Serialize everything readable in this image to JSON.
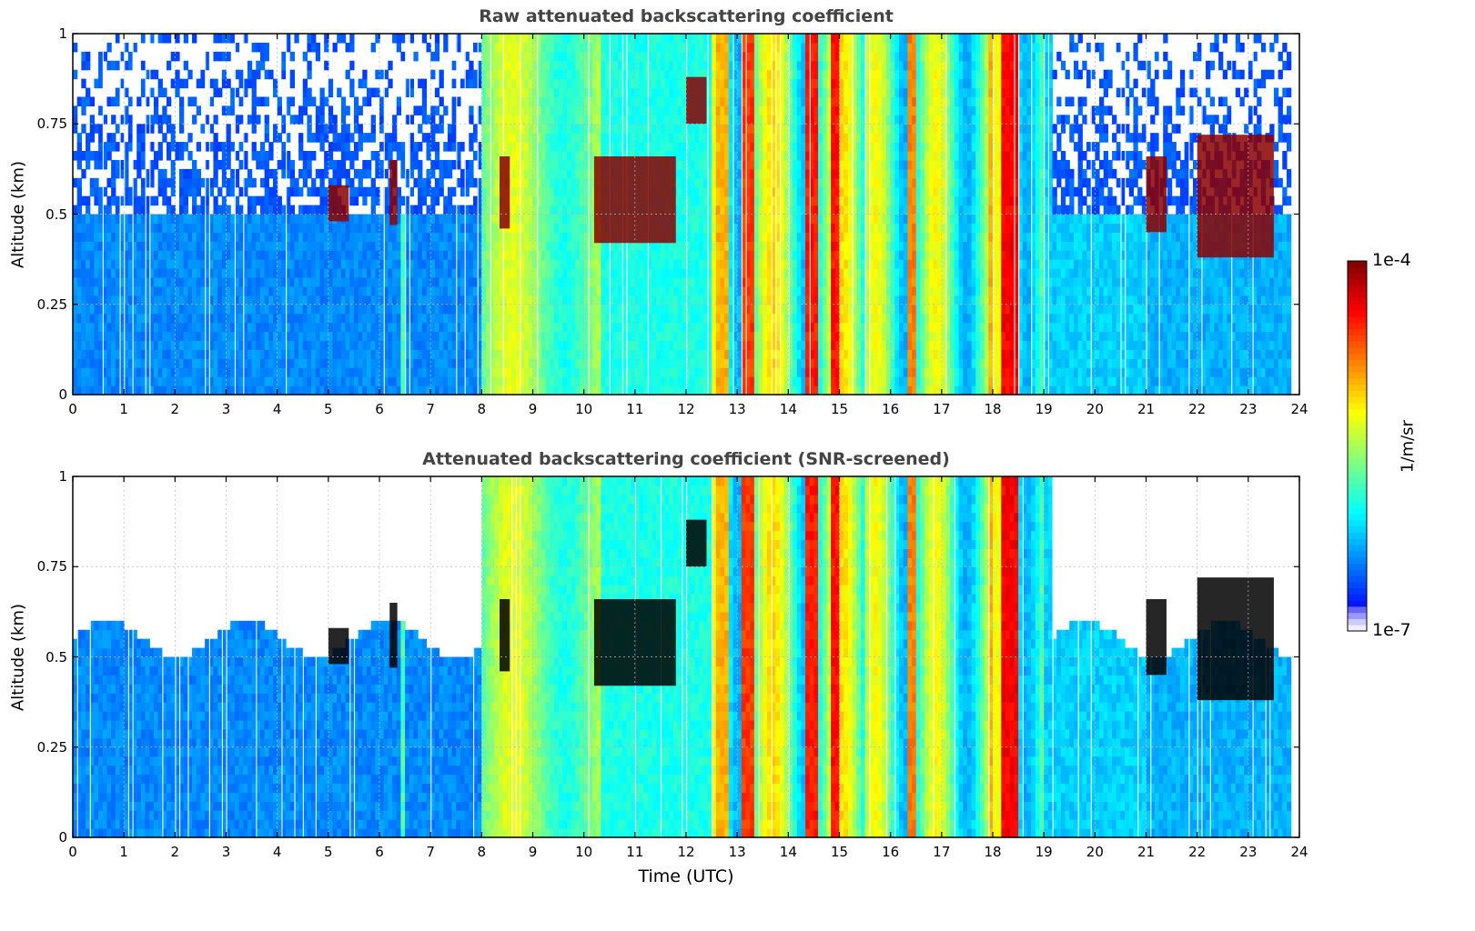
{
  "chart_data": [
    {
      "type": "heatmap",
      "title": "Raw attenuated backscattering coefficient",
      "ylabel": "Altitude (km)",
      "xlabel": "",
      "xlim": [
        0,
        24
      ],
      "ylim": [
        0,
        1
      ],
      "x_ticks": [
        "0",
        "1",
        "2",
        "3",
        "4",
        "5",
        "6",
        "7",
        "8",
        "9",
        "10",
        "11",
        "12",
        "13",
        "14",
        "15",
        "16",
        "17",
        "18",
        "19",
        "20",
        "21",
        "22",
        "23",
        "24"
      ],
      "y_ticks": [
        "0",
        "0.25",
        "0.5",
        "0.75",
        "1"
      ],
      "grid": true,
      "screened": false,
      "cloud_layers": [
        {
          "x": [
            5.0,
            5.4
          ],
          "y": [
            0.48,
            0.58
          ]
        },
        {
          "x": [
            6.2,
            6.35
          ],
          "y": [
            0.47,
            0.65
          ]
        },
        {
          "x": [
            8.35,
            8.55
          ],
          "y": [
            0.46,
            0.66
          ]
        },
        {
          "x": [
            10.2,
            11.8
          ],
          "y": [
            0.42,
            0.66
          ]
        },
        {
          "x": [
            12.0,
            12.4
          ],
          "y": [
            0.75,
            0.88
          ]
        },
        {
          "x": [
            21.0,
            21.4
          ],
          "y": [
            0.45,
            0.66
          ]
        },
        {
          "x": [
            22.0,
            23.5
          ],
          "y": [
            0.38,
            0.72
          ]
        }
      ]
    },
    {
      "type": "heatmap",
      "title": "Attenuated backscattering coefficient (SNR-screened)",
      "ylabel": "Altitude (km)",
      "xlabel": "Time (UTC)",
      "xlim": [
        0,
        24
      ],
      "ylim": [
        0,
        1
      ],
      "x_ticks": [
        "0",
        "1",
        "2",
        "3",
        "4",
        "5",
        "6",
        "7",
        "8",
        "9",
        "10",
        "11",
        "12",
        "13",
        "14",
        "15",
        "16",
        "17",
        "18",
        "19",
        "20",
        "21",
        "22",
        "23",
        "24"
      ],
      "y_ticks": [
        "0",
        "0.25",
        "0.5",
        "0.75",
        "1"
      ],
      "grid": true,
      "screened": true,
      "cloud_layers": [
        {
          "x": [
            5.0,
            5.4
          ],
          "y": [
            0.48,
            0.58
          ]
        },
        {
          "x": [
            6.2,
            6.35
          ],
          "y": [
            0.47,
            0.65
          ]
        },
        {
          "x": [
            8.35,
            8.55
          ],
          "y": [
            0.46,
            0.66
          ]
        },
        {
          "x": [
            10.2,
            11.8
          ],
          "y": [
            0.42,
            0.66
          ]
        },
        {
          "x": [
            12.0,
            12.4
          ],
          "y": [
            0.75,
            0.88
          ]
        },
        {
          "x": [
            21.0,
            21.4
          ],
          "y": [
            0.45,
            0.66
          ]
        },
        {
          "x": [
            22.0,
            23.5
          ],
          "y": [
            0.38,
            0.72
          ]
        }
      ]
    }
  ],
  "colorbar": {
    "title": "1/m/sr",
    "max_label": "1e-4",
    "min_label": "1e-7",
    "scale": "log",
    "colormap": "jet",
    "range": [
      1e-07,
      0.0001
    ]
  }
}
